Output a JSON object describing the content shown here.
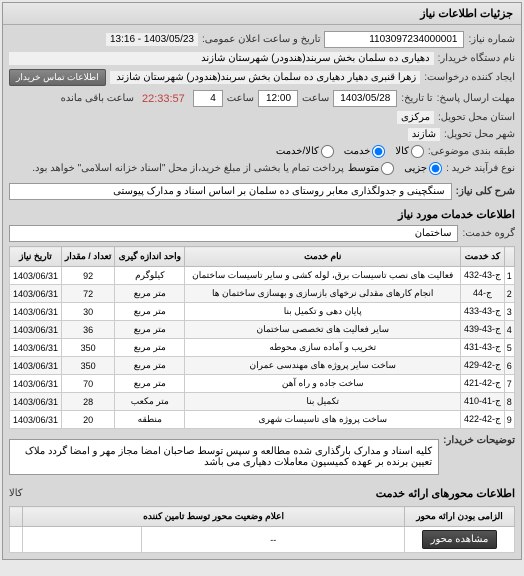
{
  "header": {
    "title": "جزئیات اطلاعات نیاز"
  },
  "info": {
    "req_no_label": "شماره نیاز:",
    "req_no": "1103097234000001",
    "announce_label": "تاریخ و ساعت اعلان عمومی:",
    "announce": "1403/05/23 - 13:16",
    "buyer_org_label": "نام دستگاه خریدار:",
    "buyer_org": "دهیاری ده سلمان بخش سربند(هندودر) شهرستان شازند",
    "requester_label": "ایجاد کننده درخواست:",
    "requester": "زهرا قنبری دهیار دهیاری ده سلمان بخش سربند(هندودر) شهرستان شازند",
    "contact_btn": "اطلاعات تماس خریدار",
    "deadline_send_label": "مهلت ارسال پاسخ:",
    "deadline_until_label": "تا تاریخ:",
    "deadline_date": "1403/05/28",
    "time_label": "ساعت",
    "time1": "12:00",
    "time2": "4",
    "timer": "22:33:57",
    "remaining": "ساعت باقی مانده",
    "province_label": "استان محل تحویل:",
    "province": "مرکزی",
    "city_label": "شهر محل تحویل:",
    "city": "شازند",
    "budget_row_label": "طبقه بندی موضوعی:",
    "payment_type_label": "نوع فرآیند خرید :",
    "payment_note": "پرداخت تمام یا بخشی از مبلغ خرید،از محل \"اسناد خزانه اسلامی\" خواهد بود.",
    "goods": "کالا",
    "service": "خدمت",
    "both": "کالا/خدمت",
    "minor": "جزیی",
    "medium": "متوسط"
  },
  "desc": {
    "title_label": "شرح کلی نیاز:",
    "title": "سنگچینی و جدولگذاری معابر روستای ده سلمان بر اساس اسناد و مدارک پیوستی"
  },
  "services_section": {
    "header": "اطلاعات خدمات مورد نیاز",
    "group_label": "گروه خدمت:",
    "group": "ساختمان"
  },
  "table": {
    "columns": [
      "",
      "کد خدمت",
      "نام خدمت",
      "واحد اندازه گیری",
      "تعداد / مقدار",
      "تاریخ نیاز"
    ],
    "rows": [
      [
        "1",
        "ج-43-432",
        "فعالیت های نصب تاسیسات برق، لوله کشی و سایر تاسیسات ساختمان",
        "کیلوگرم",
        "92",
        "1403/06/31"
      ],
      [
        "2",
        "ج-44",
        "انجام کارهای مقدلی نرخهای بازسازی و بهسازی ساختمان ها",
        "متر مربع",
        "72",
        "1403/06/31"
      ],
      [
        "3",
        "ج-43-433",
        "پایان دهی و تکمیل بنا",
        "متر مربع",
        "30",
        "1403/06/31"
      ],
      [
        "4",
        "ج-43-439",
        "سایر فعالیت های تخصصی ساختمان",
        "متر مربع",
        "36",
        "1403/06/31"
      ],
      [
        "5",
        "ج-43-431",
        "تخریب و آماده سازی محوطه",
        "متر مربع",
        "350",
        "1403/06/31"
      ],
      [
        "6",
        "ج-42-429",
        "ساخت سایر پروژه های مهندسی عمران",
        "متر مربع",
        "350",
        "1403/06/31"
      ],
      [
        "7",
        "ج-42-421",
        "ساخت جاده و راه آهن",
        "متر مربع",
        "70",
        "1403/06/31"
      ],
      [
        "8",
        "ج-41-410",
        "تکمیل بنا",
        "متر مکعب",
        "28",
        "1403/06/31"
      ],
      [
        "9",
        "ج-42-422",
        "ساخت پروژه های تاسیسات شهری",
        "منطقه",
        "20",
        "1403/06/31"
      ]
    ]
  },
  "buyer_note": {
    "label": "توضیحات خریدار:",
    "text": "کلیه اسناد و مدارک بارگذاری شده مطالعه و سپس توسط صاحبان امضا مجاز مهر و امضا گردد ملاک تعیین برنده بر عهده کمیسیون معاملات دهیاری می باشد"
  },
  "attachments": {
    "title": "اطلاعات محورهای ارائه خدمت",
    "col1": "کالا",
    "sub_header": "اعلام وضعیت محور توسط تامین کننده",
    "mandatory": "الزامی بودن ارائه محور",
    "view_btn": "مشاهده محور"
  }
}
